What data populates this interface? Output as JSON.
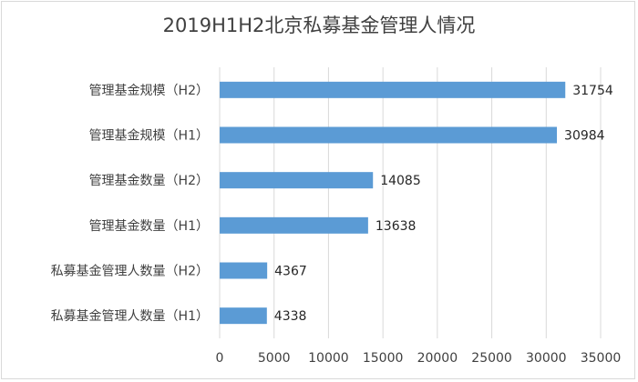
{
  "chart_data": {
    "type": "bar",
    "orientation": "horizontal",
    "title": "2019H1H2北京私募基金管理人情况",
    "categories": [
      "管理基金规模（H2）",
      "管理基金规模（H1）",
      "管理基金数量（H2）",
      "管理基金数量（H1）",
      "私募基金管理人数量（H2）",
      "私募基金管理人数量（H1）"
    ],
    "values": [
      31754,
      30984,
      14085,
      13638,
      4367,
      4338
    ],
    "xlim": [
      0,
      35000
    ],
    "xticks": [
      0,
      5000,
      10000,
      15000,
      20000,
      25000,
      30000,
      35000
    ],
    "grid": true,
    "bar_color": "#5b9bd5"
  }
}
